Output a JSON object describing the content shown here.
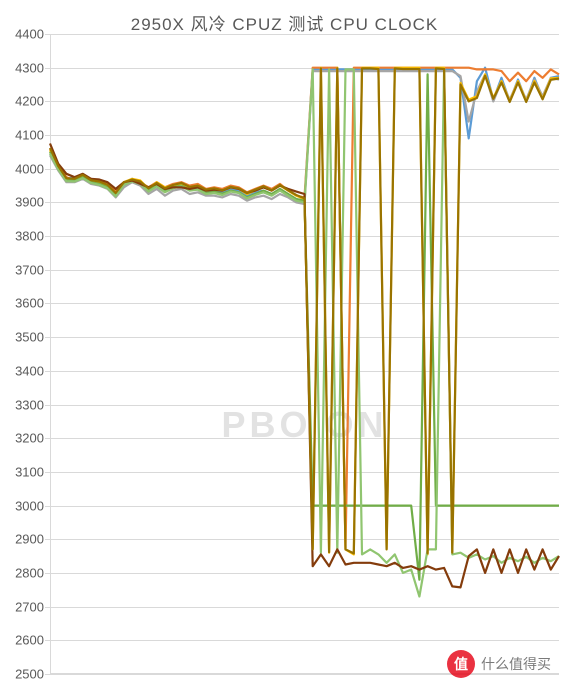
{
  "chart": {
    "type": "line",
    "title": "2950X 风冷 CPUZ 测试 CPU CLOCK",
    "title_fontsize": 17,
    "title_color": "#595959",
    "background_color": "#ffffff",
    "grid_color": "#d9d9d9",
    "label_fontsize": 13,
    "label_color": "#595959",
    "ylim": [
      2500,
      4400
    ],
    "ytick_step": 100,
    "x_count": 63,
    "line_width": 2.2,
    "watermark": "PBO ON",
    "watermark_color": "#cccccc",
    "series": [
      {
        "color": "#5b9bd5",
        "data": [
          4055,
          4005,
          3970,
          3975,
          3980,
          3965,
          3960,
          3950,
          3920,
          3955,
          3970,
          3960,
          3940,
          3950,
          3935,
          3950,
          3955,
          3940,
          3945,
          3935,
          3935,
          3930,
          3940,
          3935,
          3920,
          3930,
          3935,
          3925,
          3940,
          3925,
          3910,
          3905,
          4295,
          4295,
          4295,
          4295,
          4295,
          4295,
          4295,
          4295,
          4295,
          4295,
          4295,
          4295,
          4295,
          4295,
          4295,
          4295,
          4295,
          4295,
          4270,
          4090,
          4260,
          4300,
          4205,
          4270,
          4200,
          4265,
          4200,
          4270,
          4210,
          4270,
          4275
        ]
      },
      {
        "color": "#ed7d31",
        "data": [
          4060,
          4010,
          3975,
          3965,
          3975,
          3970,
          3965,
          3955,
          3935,
          3960,
          3965,
          3960,
          3945,
          3960,
          3945,
          3955,
          3960,
          3950,
          3955,
          3940,
          3945,
          3940,
          3950,
          3945,
          3930,
          3940,
          3950,
          3940,
          3955,
          3935,
          3920,
          3915,
          4300,
          4300,
          4300,
          4300,
          2870,
          4300,
          4300,
          4300,
          4300,
          4300,
          4300,
          4300,
          4300,
          4300,
          4300,
          4300,
          4300,
          4300,
          4300,
          4300,
          4295,
          4295,
          4295,
          4290,
          4260,
          4285,
          4260,
          4290,
          4270,
          4295,
          4280
        ]
      },
      {
        "color": "#a5a5a5",
        "data": [
          4040,
          3995,
          3960,
          3960,
          3970,
          3955,
          3950,
          3940,
          3915,
          3945,
          3960,
          3950,
          3925,
          3940,
          3920,
          3935,
          3940,
          3925,
          3930,
          3920,
          3920,
          3915,
          3925,
          3920,
          3905,
          3915,
          3920,
          3910,
          3925,
          3915,
          3900,
          3895,
          4290,
          4290,
          4290,
          4290,
          4290,
          4290,
          4290,
          4290,
          4290,
          4290,
          4290,
          4290,
          4290,
          4290,
          4290,
          4290,
          4290,
          4290,
          4275,
          4140,
          4230,
          4280,
          4200,
          4260,
          4205,
          4260,
          4205,
          4265,
          4215,
          4270,
          4265
        ]
      },
      {
        "color": "#ffc000",
        "data": [
          4055,
          4005,
          3970,
          3970,
          3980,
          3965,
          3960,
          3950,
          3925,
          3960,
          3970,
          3965,
          3940,
          3960,
          3945,
          3950,
          3955,
          3945,
          3950,
          3935,
          3940,
          3935,
          3945,
          3940,
          3925,
          3935,
          3945,
          3935,
          3950,
          3935,
          3920,
          3910,
          2870,
          4300,
          2860,
          4300,
          2870,
          2855,
          4300,
          4300,
          4300,
          2870,
          4300,
          4300,
          4300,
          4300,
          2855,
          4300,
          4300,
          2860,
          4255,
          4205,
          4215,
          4280,
          4210,
          4260,
          4200,
          4260,
          4200,
          4260,
          4208,
          4268,
          4270
        ]
      },
      {
        "color": "#70ad47",
        "data": [
          4050,
          4000,
          3965,
          3965,
          3975,
          3960,
          3955,
          3945,
          3920,
          3955,
          3965,
          3958,
          3935,
          3955,
          3935,
          3945,
          3950,
          3938,
          3942,
          3928,
          3932,
          3926,
          3935,
          3930,
          3915,
          3925,
          3935,
          3925,
          3940,
          3925,
          3910,
          3905,
          3000,
          3000,
          3000,
          3000,
          3000,
          3000,
          3000,
          3000,
          3000,
          3000,
          3000,
          3000,
          3000,
          2780,
          4280,
          3000,
          3000,
          3000,
          3000,
          3000,
          3000,
          3000,
          3000,
          3000,
          3000,
          3000,
          3000,
          3000,
          3000,
          3000,
          3000
        ]
      },
      {
        "color": "#90c570",
        "data": [
          4045,
          3998,
          3963,
          3962,
          3972,
          3958,
          3952,
          3942,
          3918,
          3952,
          3962,
          3955,
          3932,
          3948,
          3930,
          3942,
          3948,
          3935,
          3938,
          3925,
          3928,
          3922,
          3932,
          3928,
          3912,
          3922,
          3930,
          3920,
          3935,
          3920,
          3905,
          3900,
          4295,
          2860,
          4295,
          2860,
          4295,
          4295,
          2855,
          2870,
          2855,
          2830,
          2855,
          2800,
          2810,
          2730,
          2870,
          2870,
          4295,
          2855,
          2860,
          2845,
          2855,
          2840,
          2850,
          2830,
          2845,
          2835,
          2848,
          2830,
          2845,
          2835,
          2850
        ]
      },
      {
        "color": "#843c0c",
        "data": [
          4075,
          4015,
          3985,
          3975,
          3985,
          3970,
          3968,
          3960,
          3940,
          3960,
          3965,
          3955,
          3945,
          3955,
          3940,
          3945,
          3945,
          3940,
          3945,
          3935,
          3938,
          3935,
          3945,
          3940,
          3928,
          3935,
          3945,
          3935,
          3950,
          3940,
          3932,
          3925,
          2820,
          2855,
          2820,
          2870,
          2825,
          2830,
          2830,
          2830,
          2825,
          2820,
          2830,
          2815,
          2820,
          2810,
          2820,
          2810,
          2815,
          2760,
          2757,
          2850,
          2870,
          2800,
          2870,
          2800,
          2870,
          2800,
          2870,
          2810,
          2870,
          2810,
          2850
        ]
      },
      {
        "color": "#997300",
        "data": [
          4062,
          4008,
          3972,
          3970,
          3982,
          3966,
          3962,
          3952,
          3928,
          3960,
          3968,
          3962,
          3942,
          3958,
          3942,
          3952,
          3958,
          3946,
          3950,
          3938,
          3942,
          3936,
          3946,
          3942,
          3928,
          3938,
          3948,
          3936,
          3952,
          3936,
          3922,
          3912,
          2870,
          4298,
          2862,
          4298,
          2870,
          2858,
          4298,
          4298,
          4296,
          2870,
          4298,
          4296,
          4296,
          4296,
          2858,
          4298,
          4296,
          2860,
          4250,
          4200,
          4210,
          4276,
          4208,
          4256,
          4198,
          4256,
          4198,
          4256,
          4206,
          4264,
          4268
        ]
      }
    ]
  },
  "badge": {
    "icon_text": "值",
    "label": "什么值得买"
  }
}
